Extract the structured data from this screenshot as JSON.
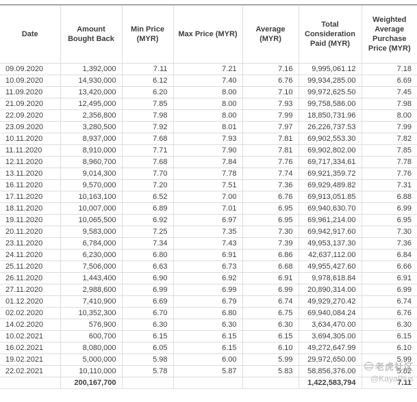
{
  "table": {
    "columns": [
      "Date",
      "Amount Bought Back",
      "Min Price (MYR)",
      "Max Price (MYR)",
      "Average (MYR)",
      "Total Consideration Paid (MYR)",
      "Weighted Average Purchase Price (MYR)"
    ],
    "rows": [
      [
        "09.09.2020",
        "1,392,000",
        "7.11",
        "7.21",
        "7.16",
        "9,995,061.12",
        "7.18"
      ],
      [
        "10.09.2020",
        "14,930,000",
        "6.12",
        "7.40",
        "6.76",
        "99,934,285.00",
        "6.69"
      ],
      [
        "11.09.2020",
        "13,420,000",
        "6.20",
        "8.00",
        "7.10",
        "99,972,625.50",
        "7.45"
      ],
      [
        "21.09.2020",
        "12,495,000",
        "7.85",
        "8.00",
        "7.93",
        "99,758,586.00",
        "7.98"
      ],
      [
        "22.09.2020",
        "2,356,800",
        "7.98",
        "8.00",
        "7.99",
        "18,850,731.96",
        "8.00"
      ],
      [
        "23.09.2020",
        "3,280,500",
        "7.92",
        "8.01",
        "7.97",
        "26,226,737.53",
        "7.99"
      ],
      [
        "10.11.2020",
        "8,937,000",
        "7.68",
        "7.93",
        "7.81",
        "69,902,553.30",
        "7.82"
      ],
      [
        "11.11.2020",
        "8,910,000",
        "7.71",
        "7.90",
        "7.81",
        "69,902,802.00",
        "7.85"
      ],
      [
        "12.11.2020",
        "8,960,700",
        "7.68",
        "7.84",
        "7.76",
        "69,717,334.61",
        "7.78"
      ],
      [
        "13.11.2020",
        "9,014,300",
        "7.70",
        "7.78",
        "7.74",
        "69,921,359.72",
        "7.76"
      ],
      [
        "16.11.2020",
        "9,570,000",
        "7.20",
        "7.51",
        "7.36",
        "69,929,489.82",
        "7.31"
      ],
      [
        "17.11.2020",
        "10,163,100",
        "6.52",
        "7.00",
        "6.76",
        "69,913,051.85",
        "6.88"
      ],
      [
        "18.11.2020",
        "10,007,000",
        "6.89",
        "7.01",
        "6.95",
        "69,940,630.70",
        "6.99"
      ],
      [
        "19.11.2020",
        "10,065,500",
        "6.92",
        "6.97",
        "6.95",
        "69,961,214.00",
        "6.95"
      ],
      [
        "20.11.2020",
        "9,583,000",
        "7.25",
        "7.35",
        "7.30",
        "69,942,917.60",
        "7.30"
      ],
      [
        "23.11.2020",
        "6,784,000",
        "7.34",
        "7.43",
        "7.39",
        "49,953,137.30",
        "7.36"
      ],
      [
        "24.11.2020",
        "6,230,000",
        "6.80",
        "6.91",
        "6.86",
        "42,637,112.00",
        "6.84"
      ],
      [
        "25.11.2020",
        "7,506,000",
        "6.63",
        "6.73",
        "6.68",
        "49,955,427.60",
        "6.66"
      ],
      [
        "26.11.2020",
        "1,443,400",
        "6.90",
        "6.92",
        "6.91",
        "9,978,618.84",
        "6.91"
      ],
      [
        "27.11.2020",
        "2,988,600",
        "6.99",
        "6.99",
        "6.99",
        "20,890,314.00",
        "6.99"
      ],
      [
        "01.12.2020",
        "7,410,900",
        "6.69",
        "6.79",
        "6.74",
        "49,929,270.42",
        "6.74"
      ],
      [
        "02.02.2020",
        "10,352,300",
        "6.70",
        "6.80",
        "6.75",
        "69,940,084.24",
        "6.76"
      ],
      [
        "14.02.2020",
        "576,900",
        "6.30",
        "6.30",
        "6.30",
        "3,634,470.00",
        "6.30"
      ],
      [
        "10.02.2021",
        "600,700",
        "6.15",
        "6.15",
        "6.15",
        "3,694,305.00",
        "6.15"
      ],
      [
        "16.02.2021",
        "8,080,000",
        "6.05",
        "6.15",
        "6.10",
        "49,272,647.99",
        "6.10"
      ],
      [
        "19.02.2021",
        "5,000,000",
        "5.98",
        "6.00",
        "5.99",
        "29,972,650.00",
        "5.99"
      ],
      [
        "22.02.2021",
        "10,110,000",
        "5.78",
        "5.87",
        "5.83",
        "58,856,376.00",
        "5.82"
      ]
    ],
    "total_row": [
      "",
      "200,167,700",
      "",
      "",
      "",
      "1,422,583,794",
      "7.11"
    ]
  },
  "watermark": {
    "logo": "tiger-community-logo",
    "brand": "老虎社区",
    "handle": "@KayaPlus"
  },
  "colors": {
    "border_light": "#dcdcdc",
    "border_dark": "#a6a6a6",
    "text": "#3d3d3d",
    "watermark": "#b5b5b5"
  }
}
